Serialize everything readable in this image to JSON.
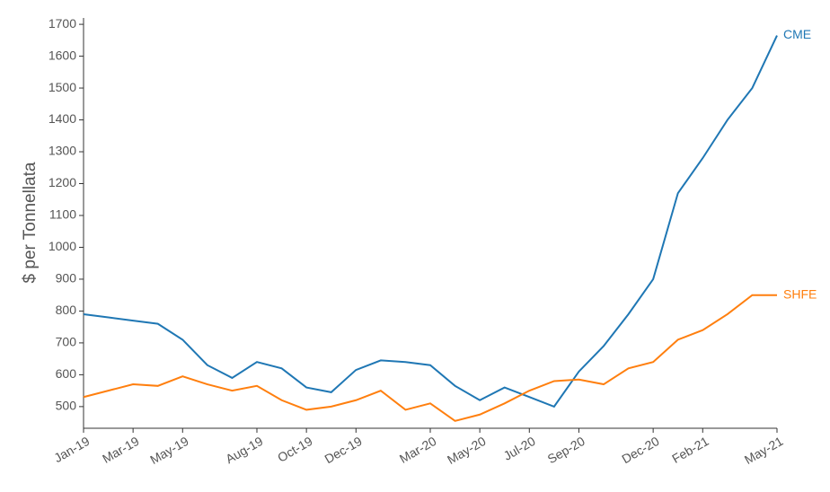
{
  "chart_data": {
    "type": "line",
    "ylabel": "$ per Tonnellata",
    "categories": [
      "Jan-19",
      null,
      "Mar-19",
      null,
      "May-19",
      null,
      null,
      "Aug-19",
      null,
      "Oct-19",
      null,
      "Dec-19",
      null,
      null,
      "Mar-20",
      null,
      "May-20",
      null,
      "Jul-20",
      null,
      "Sep-20",
      null,
      null,
      "Dec-20",
      null,
      "Feb-21",
      null,
      null,
      "May-21"
    ],
    "series": [
      {
        "name": "CME",
        "color": "#1f77b4",
        "values": [
          790,
          780,
          770,
          760,
          710,
          630,
          590,
          640,
          620,
          560,
          545,
          615,
          645,
          640,
          630,
          565,
          520,
          560,
          530,
          500,
          610,
          690,
          790,
          900,
          1170,
          1280,
          1400,
          1500,
          1665
        ]
      },
      {
        "name": "SHFE",
        "color": "#ff7f0e",
        "values": [
          530,
          550,
          570,
          565,
          595,
          570,
          550,
          565,
          520,
          490,
          500,
          520,
          550,
          490,
          510,
          455,
          475,
          510,
          550,
          580,
          585,
          570,
          620,
          640,
          710,
          740,
          790,
          850,
          850
        ]
      }
    ],
    "ylim": [
      432,
      1720
    ],
    "yticks": [
      500,
      600,
      700,
      800,
      900,
      1000,
      1100,
      1200,
      1300,
      1400,
      1500,
      1600,
      1700
    ]
  }
}
